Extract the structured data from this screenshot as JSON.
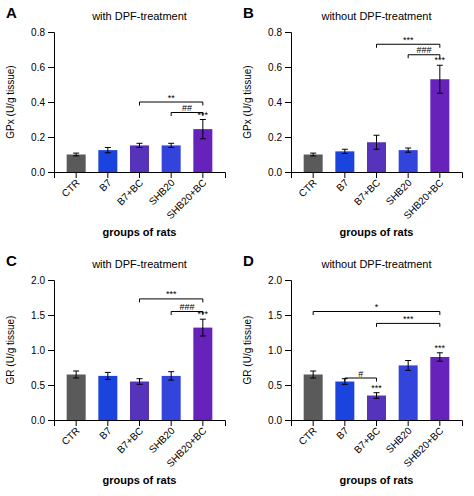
{
  "chart_data": [
    {
      "type": "bar",
      "panel": "A",
      "title": "with DPF-treatment",
      "ylabel": "GPx (U/g tissue)",
      "xlabel": "groups of rats",
      "categories": [
        "CTR",
        "B7",
        "B7+BC",
        "SHB20",
        "SHB20+BC"
      ],
      "values": [
        0.1,
        0.125,
        0.152,
        0.152,
        0.245
      ],
      "errors": [
        0.008,
        0.015,
        0.012,
        0.012,
        0.055
      ],
      "colors": [
        "#5a5a5a",
        "#1a44dd",
        "#5533bb",
        "#3344dd",
        "#6622bb"
      ],
      "ylim": [
        0,
        0.8
      ],
      "yticks": [
        {
          "value": 0,
          "label": "0.0"
        },
        0.2,
        0.4,
        0.6,
        0.8
      ],
      "grid": false,
      "annotations": [
        {
          "text": "**",
          "from": "B7+BC",
          "to": "SHB20+BC",
          "y": 0.4
        },
        {
          "text": "##",
          "from": "SHB20",
          "to": "SHB20+BC",
          "y": 0.34
        },
        {
          "text": "***",
          "at": "SHB20+BC"
        }
      ]
    },
    {
      "type": "bar",
      "panel": "B",
      "title": "without DPF-treatment",
      "ylabel": "GPx (U/g tissue)",
      "xlabel": "groups of rats",
      "categories": [
        "CTR",
        "B7",
        "B7+BC",
        "SHB20",
        "SHB20+BC"
      ],
      "values": [
        0.1,
        0.118,
        0.17,
        0.125,
        0.53
      ],
      "errors": [
        0.008,
        0.012,
        0.04,
        0.012,
        0.08
      ],
      "colors": [
        "#5a5a5a",
        "#1a44dd",
        "#5533bb",
        "#3344dd",
        "#6622bb"
      ],
      "ylim": [
        0,
        0.8
      ],
      "yticks": [
        {
          "value": 0,
          "label": "0.0"
        },
        0.2,
        0.4,
        0.6,
        0.8
      ],
      "grid": false,
      "annotations": [
        {
          "text": "***",
          "from": "B7+BC",
          "to": "SHB20+BC",
          "y": 0.73
        },
        {
          "text": "###",
          "from": "SHB20",
          "to": "SHB20+BC",
          "y": 0.67
        },
        {
          "text": "***",
          "at": "SHB20+BC"
        }
      ]
    },
    {
      "type": "bar",
      "panel": "C",
      "title": "with DPF-treatment",
      "ylabel": "GR (U/g tissue)",
      "xlabel": "groups of rats",
      "categories": [
        "CTR",
        "B7",
        "B7+BC",
        "SHB20",
        "SHB20+BC"
      ],
      "values": [
        0.65,
        0.63,
        0.55,
        0.63,
        1.32
      ],
      "errors": [
        0.05,
        0.05,
        0.04,
        0.06,
        0.12
      ],
      "colors": [
        "#5a5a5a",
        "#1a44dd",
        "#5533bb",
        "#3344dd",
        "#6622bb"
      ],
      "ylim": [
        0,
        2.0
      ],
      "yticks": [
        {
          "value": 0,
          "label": "0.0"
        },
        0.5,
        {
          "value": 1,
          "label": "1.0"
        },
        1.5,
        {
          "value": 2,
          "label": "2.0"
        }
      ],
      "grid": false,
      "annotations": [
        {
          "text": "***",
          "from": "B7+BC",
          "to": "SHB20+BC",
          "y": 1.73
        },
        {
          "text": "###",
          "from": "SHB20",
          "to": "SHB20+BC",
          "y": 1.55
        },
        {
          "text": "***",
          "at": "SHB20+BC"
        }
      ]
    },
    {
      "type": "bar",
      "panel": "D",
      "title": "without DPF-treatment",
      "ylabel": "GR (U/g tissue)",
      "xlabel": "groups of rats",
      "categories": [
        "CTR",
        "B7",
        "B7+BC",
        "SHB20",
        "SHB20+BC"
      ],
      "values": [
        0.65,
        0.55,
        0.35,
        0.78,
        0.9
      ],
      "errors": [
        0.05,
        0.04,
        0.04,
        0.07,
        0.06
      ],
      "colors": [
        "#5a5a5a",
        "#1a44dd",
        "#5533bb",
        "#3344dd",
        "#6622bb"
      ],
      "ylim": [
        0,
        2.0
      ],
      "yticks": [
        {
          "value": 0,
          "label": "0.0"
        },
        0.5,
        {
          "value": 1,
          "label": "1.0"
        },
        1.5,
        {
          "value": 2,
          "label": "2.0"
        }
      ],
      "grid": false,
      "annotations": [
        {
          "text": "*",
          "from": "CTR",
          "to": "SHB20+BC",
          "y": 1.55
        },
        {
          "text": "***",
          "from": "B7+BC",
          "to": "SHB20+BC",
          "y": 1.38
        },
        {
          "text": "#",
          "from": "B7",
          "to": "B7+BC",
          "y": 0.6
        },
        {
          "text": "***",
          "at": "B7+BC"
        },
        {
          "text": "***",
          "at": "SHB20+BC"
        }
      ]
    }
  ]
}
